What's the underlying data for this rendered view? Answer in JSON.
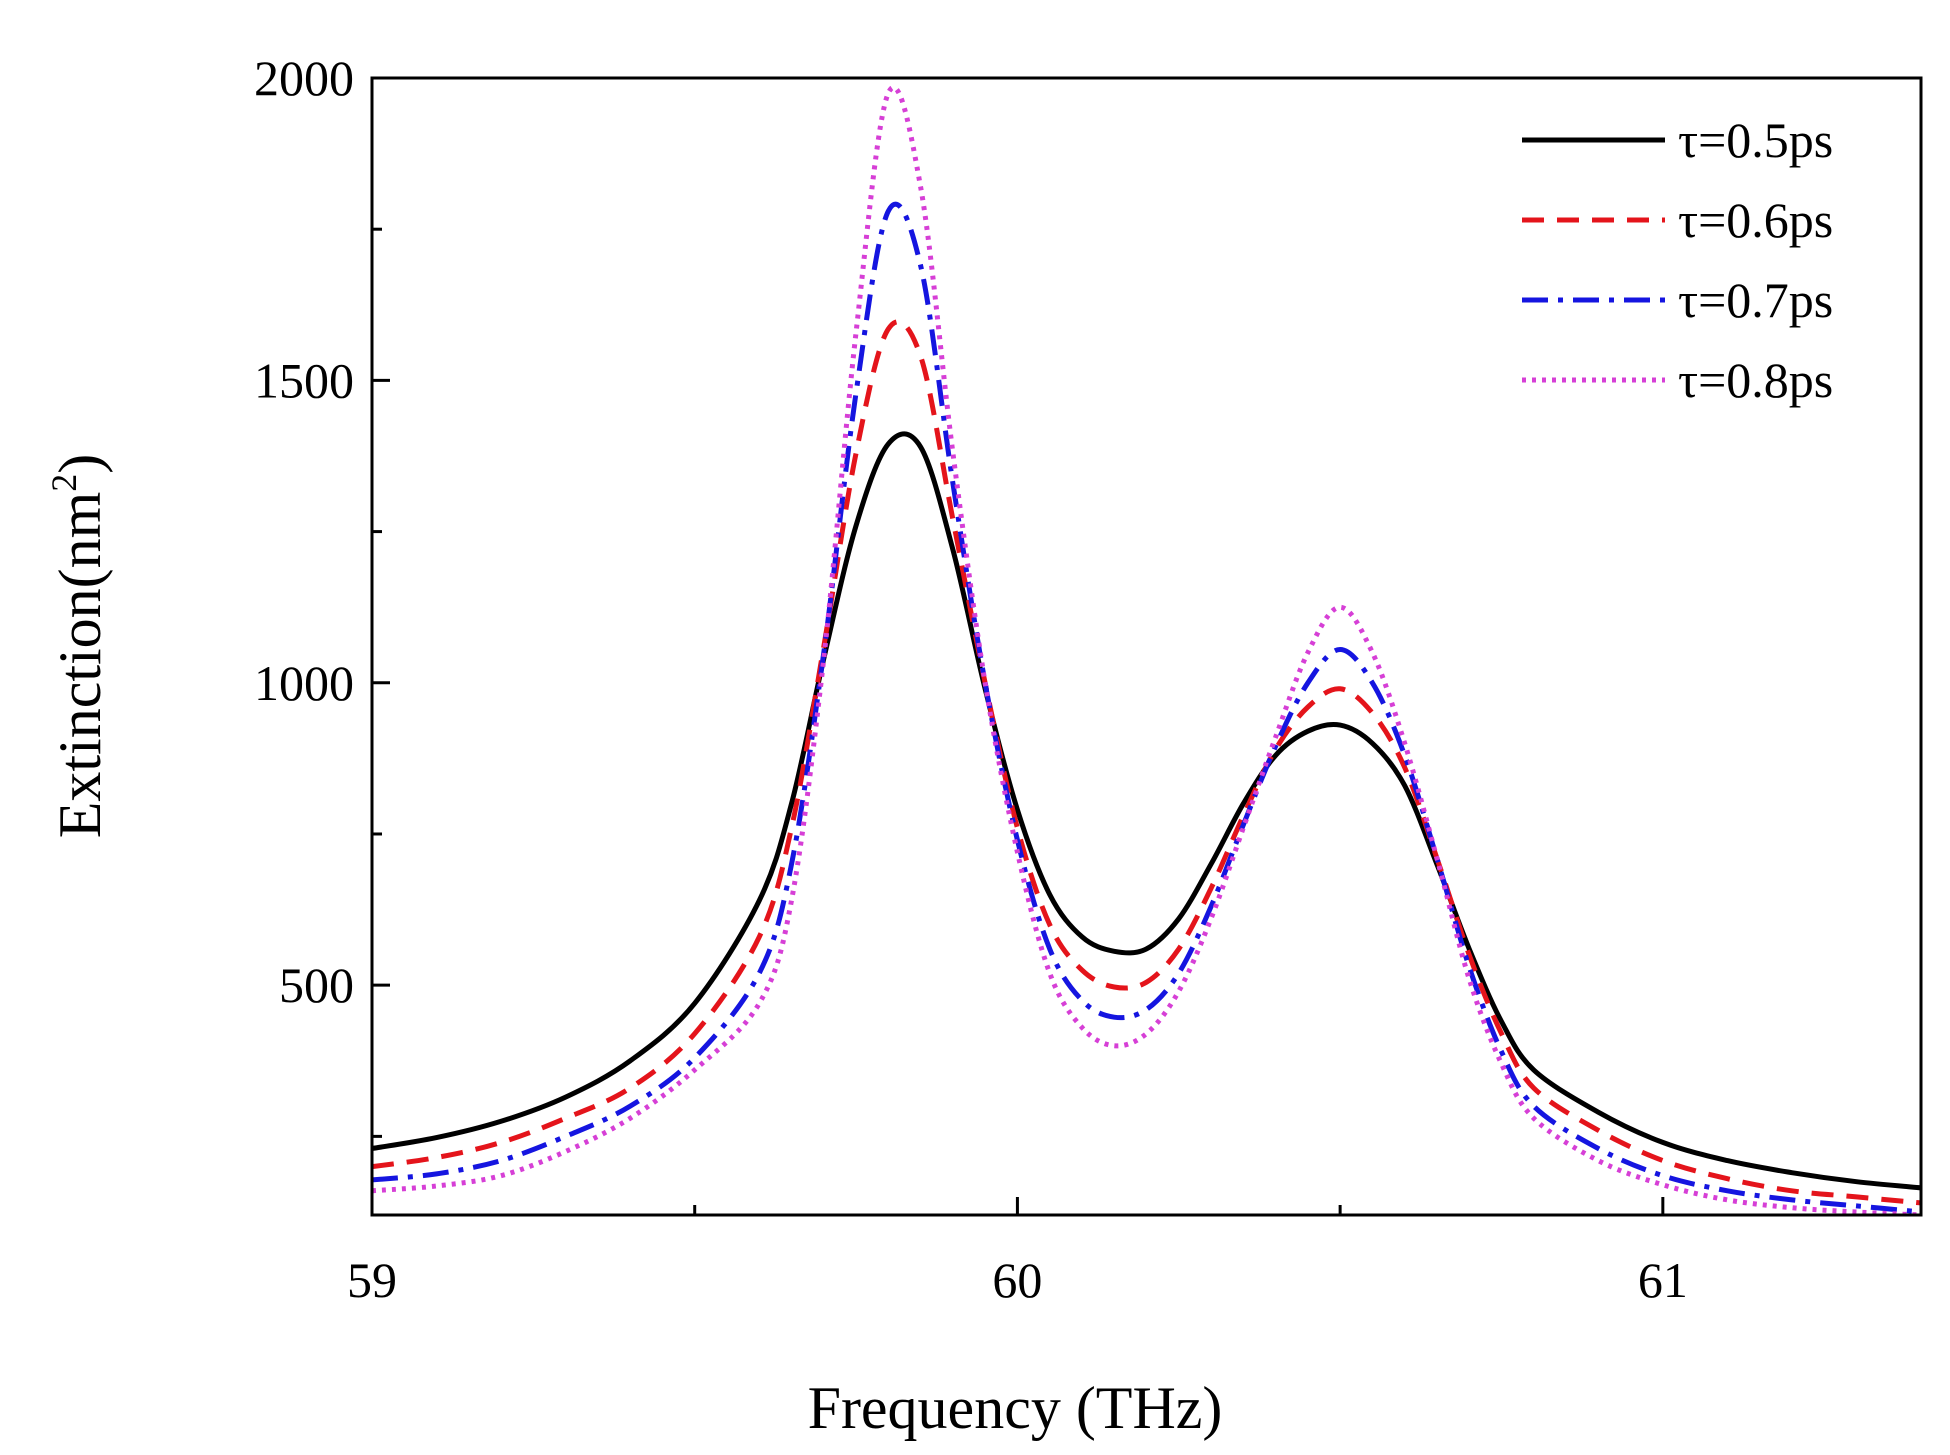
{
  "chart_data": {
    "type": "line",
    "title": "",
    "xlabel": "Frequency (THz)",
    "ylabel_main": "Extinction(nm",
    "ylabel_sup": "2",
    "ylabel_end": ")",
    "xlim": [
      59.0,
      61.4
    ],
    "ylim": [
      120,
      2000
    ],
    "xticks": [
      59,
      60,
      61
    ],
    "xtick_labels": [
      "59",
      "60",
      "61"
    ],
    "xminor_ticks": [
      59.5,
      60.5
    ],
    "yticks": [
      500,
      1000,
      1500,
      2000
    ],
    "ytick_labels": [
      "500",
      "1000",
      "1500",
      "2000"
    ],
    "yminor_ticks": [
      250,
      750,
      1250,
      1750
    ],
    "legend_position": "top-right",
    "x": [
      59.0,
      59.1,
      59.2,
      59.3,
      59.4,
      59.5,
      59.6,
      59.65,
      59.7,
      59.75,
      59.8,
      59.85,
      59.9,
      59.95,
      60.0,
      60.05,
      60.1,
      60.15,
      60.2,
      60.25,
      60.3,
      60.35,
      60.4,
      60.45,
      60.5,
      60.55,
      60.6,
      60.65,
      60.7,
      60.75,
      60.8,
      60.9,
      61.0,
      61.1,
      61.2,
      61.3,
      61.4
    ],
    "series": [
      {
        "name": "τ=0.5ps",
        "color": "#000000",
        "dash": "solid",
        "values": [
          230,
          248,
          275,
          315,
          375,
          470,
          640,
          800,
          1040,
          1260,
          1395,
          1390,
          1220,
          990,
          790,
          650,
          580,
          556,
          560,
          610,
          700,
          800,
          880,
          920,
          930,
          900,
          830,
          700,
          560,
          440,
          360,
          290,
          240,
          210,
          190,
          175,
          165
        ]
      },
      {
        "name": "τ=0.6ps",
        "color": "#e4141b",
        "dash": "dashed",
        "values": [
          200,
          215,
          240,
          280,
          330,
          420,
          580,
          760,
          1060,
          1380,
          1585,
          1540,
          1270,
          1000,
          760,
          600,
          525,
          497,
          505,
          560,
          660,
          780,
          890,
          960,
          990,
          950,
          860,
          710,
          550,
          420,
          330,
          260,
          210,
          180,
          160,
          150,
          140
        ]
      },
      {
        "name": "τ=0.7ps",
        "color": "#1515e0",
        "dash": "dashdot",
        "values": [
          178,
          188,
          210,
          250,
          300,
          380,
          520,
          700,
          1050,
          1480,
          1780,
          1690,
          1330,
          1000,
          740,
          560,
          475,
          447,
          460,
          520,
          630,
          765,
          895,
          1000,
          1055,
          1000,
          880,
          710,
          530,
          390,
          300,
          230,
          185,
          160,
          145,
          135,
          125
        ]
      },
      {
        "name": "τ=0.8ps",
        "color": "#d63fd6",
        "dash": "dotted",
        "values": [
          160,
          168,
          185,
          225,
          280,
          360,
          470,
          640,
          1040,
          1580,
          1975,
          1820,
          1380,
          1000,
          720,
          520,
          430,
          400,
          420,
          490,
          610,
          760,
          910,
          1050,
          1125,
          1050,
          900,
          710,
          510,
          370,
          280,
          210,
          170,
          145,
          132,
          125,
          120
        ]
      }
    ]
  }
}
